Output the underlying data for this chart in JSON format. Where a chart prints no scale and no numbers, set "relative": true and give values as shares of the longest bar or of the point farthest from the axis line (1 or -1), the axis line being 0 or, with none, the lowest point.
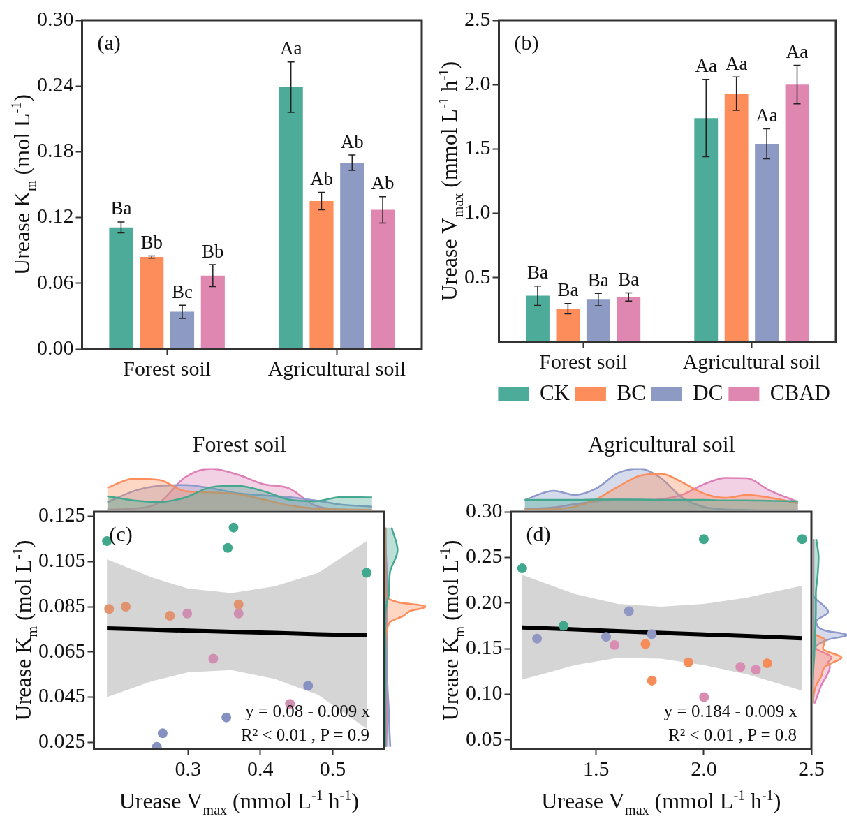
{
  "chart_data": [
    {
      "type": "bar",
      "ylabel": "Urease K$_{m}$ (mol L$^{-1}$)",
      "annotations": [
        "(a)"
      ],
      "categories": [
        "Forest soil",
        "Agricultural soil"
      ],
      "ylim": [
        0,
        0.3
      ],
      "yticks": [
        {
          "value": 0,
          "label": "0.00"
        },
        0.06,
        0.12,
        0.18,
        0.24,
        {
          "value": 0.3,
          "label": "0.30"
        }
      ],
      "grid": false,
      "series": [
        {
          "color": "#4dab99",
          "values": [
            0.111,
            0.239
          ],
          "errors": [
            0.005,
            0.023
          ],
          "value_labels": [
            "Ba",
            "Aa"
          ]
        },
        {
          "color": "#fd8d5b",
          "values": [
            0.084,
            0.135
          ],
          "errors": [
            0.001,
            0.008
          ],
          "value_labels": [
            "Bb",
            "Ab"
          ]
        },
        {
          "color": "#8c9ac4",
          "values": [
            0.034,
            0.17
          ],
          "errors": [
            0.006,
            0.007
          ],
          "value_labels": [
            "Bc",
            "Ab"
          ]
        },
        {
          "color": "#df86b1",
          "values": [
            0.067,
            0.127
          ],
          "errors": [
            0.01,
            0.012
          ],
          "value_labels": [
            "Bb",
            "Ab"
          ]
        }
      ]
    },
    {
      "type": "bar",
      "ylabel": "Urease V$_{max}$ (mmol L$^{-1}$ h$^{-1}$)",
      "annotations": [
        "(b)"
      ],
      "categories": [
        "Forest soil",
        "Agricultural soil"
      ],
      "ylim": [
        0,
        2.5
      ],
      "yticks": [
        0.5,
        {
          "value": 1,
          "label": "1.0"
        },
        1.5,
        {
          "value": 2,
          "label": "2.0"
        },
        2.5
      ],
      "grid": false,
      "legend": "bottom right",
      "series": [
        {
          "name": "CK",
          "color": "#4dab99",
          "values": [
            0.36,
            1.74
          ],
          "errors": [
            0.075,
            0.3
          ],
          "value_labels": [
            "Ba",
            "Aa"
          ]
        },
        {
          "name": "BC",
          "color": "#fd8d5b",
          "values": [
            0.26,
            1.93
          ],
          "errors": [
            0.04,
            0.13
          ],
          "value_labels": [
            "Ba",
            "Aa"
          ]
        },
        {
          "name": "DC",
          "color": "#8c9ac4",
          "values": [
            0.33,
            1.54
          ],
          "errors": [
            0.048,
            0.117
          ],
          "value_labels": [
            "Ba",
            "Aa"
          ]
        },
        {
          "name": "CBAD",
          "color": "#df86b1",
          "values": [
            0.35,
            2.0
          ],
          "errors": [
            0.032,
            0.15
          ],
          "value_labels": [
            "Ba",
            "Aa"
          ]
        }
      ]
    },
    {
      "type": "scatter",
      "xlabel": "Urease V$_{max}$ (mmol L$^{-1}$ h$^{-1}$)",
      "ylabel": "Urease K$_{m}$ (mol L$^{-1}$)",
      "annotations": [
        "(c)",
        "y = 0.08 - 0.009 x",
        "R² < 0.01 , P = 0.9"
      ],
      "xlim": [
        0.17,
        0.571
      ],
      "xticks": [
        0.3,
        0.4,
        0.5
      ],
      "ylim": [
        0.022,
        0.127
      ],
      "yticks": [
        0.025,
        0.045,
        0.065,
        0.085,
        0.105,
        0.125
      ],
      "grid": false,
      "marker": "circle",
      "series": [
        {
          "color": "#3fa88d",
          "x": [
            0.188,
            0.363,
            0.355,
            0.547
          ],
          "values": [
            0.114,
            0.12,
            0.111,
            0.1
          ]
        },
        {
          "color": "#e19370",
          "x": [
            0.191,
            0.214,
            0.275,
            0.37
          ],
          "values": [
            0.084,
            0.085,
            0.081,
            0.086
          ]
        },
        {
          "color": "#8592c1",
          "x": [
            0.466,
            0.353,
            0.265,
            0.257
          ],
          "values": [
            0.05,
            0.036,
            0.029,
            0.023
          ]
        },
        {
          "color": "#cf8fb0",
          "x": [
            0.299,
            0.37,
            0.335,
            0.441
          ],
          "values": [
            0.082,
            0.082,
            0.062,
            0.042
          ]
        },
        {
          "type": "line",
          "marker": "none",
          "color": "#000000",
          "x": [
            0.188,
            0.25,
            0.3,
            0.36,
            0.42,
            0.48,
            0.547
          ],
          "values": [
            0.0754,
            0.0749,
            0.0744,
            0.0739,
            0.0734,
            0.0728,
            0.0723
          ],
          "lower": [
            0.045,
            0.052,
            0.056,
            0.057,
            0.053,
            0.046,
            0.031
          ],
          "upper": [
            0.106,
            0.098,
            0.093,
            0.091,
            0.094,
            0.1,
            0.114
          ]
        }
      ]
    },
    {
      "type": "area",
      "relative": true,
      "title": "Forest soil",
      "tick_labels": false,
      "xlim": [
        0.17,
        0.571
      ],
      "x": [
        0.188,
        0.224,
        0.26,
        0.296,
        0.332,
        0.368,
        0.404,
        0.439,
        0.475,
        0.511,
        0.554
      ],
      "series": [
        {
          "color": "#44a88f",
          "values": [
            0.34,
            0.24,
            0.2,
            0.31,
            0.56,
            0.59,
            0.46,
            0.26,
            0.22,
            0.32,
            0.31
          ]
        },
        {
          "color": "#fc8d5c",
          "values": [
            0.54,
            0.76,
            0.73,
            0.46,
            0.43,
            0.39,
            0.26,
            0.12,
            0.04,
            0.02,
            0.01
          ]
        },
        {
          "color": "#8d9acb",
          "values": [
            0.19,
            0.46,
            0.59,
            0.61,
            0.53,
            0.41,
            0.36,
            0.32,
            0.24,
            0.14,
            0.09
          ]
        },
        {
          "color": "#de7fb5",
          "values": [
            0.02,
            0.04,
            0.19,
            0.8,
            1.0,
            0.86,
            0.63,
            0.53,
            0.12,
            0.02,
            0
          ]
        }
      ]
    },
    {
      "type": "area",
      "relative": true,
      "orientation": "horizontal",
      "tick_labels": false,
      "ylim": [
        0.022,
        0.127
      ],
      "x": [
        0.12,
        0.11,
        0.1,
        0.09,
        0.087,
        0.085,
        0.083,
        0.081,
        0.078,
        0.07,
        0.06,
        0.05,
        0.04,
        0.03,
        0.023
      ],
      "series": [
        {
          "color": "#44a88f",
          "values": [
            0.15,
            0.3,
            0.11,
            0.08,
            0.04,
            0.02,
            0.01,
            0,
            0,
            0,
            0,
            0,
            0,
            0,
            0
          ]
        },
        {
          "color": "#fc8d5c",
          "values": [
            0,
            0,
            0,
            0.02,
            0.3,
            1,
            0.6,
            0.45,
            0.1,
            0.01,
            0,
            0,
            0,
            0,
            0
          ]
        },
        {
          "color": "#8d9acb",
          "values": [
            0,
            0,
            0,
            0.02,
            0.02,
            0.02,
            0.02,
            0.02,
            0.02,
            0.03,
            0.04,
            0.05,
            0.08,
            0.1,
            0.12
          ]
        },
        {
          "color": "#de7fb5",
          "values": [
            0,
            0.01,
            0.03,
            0.03,
            0.03,
            0.03,
            0.03,
            0.03,
            0.03,
            0.03,
            0.03,
            0.03,
            0.03,
            0.03,
            0.02
          ]
        }
      ]
    },
    {
      "type": "scatter",
      "xlabel": "Urease V$_{max}$ (mmol L$^{-1}$ h$^{-1}$)",
      "ylabel": "Urease K$_{m}$ (mol L$^{-1}$)",
      "annotations": [
        "(d)",
        "y = 0.184 - 0.009 x",
        "R² < 0.01 , P = 0.8"
      ],
      "xlim": [
        1.103,
        2.5
      ],
      "xticks": [
        1.5,
        {
          "value": 2,
          "label": "2.0"
        },
        2.5
      ],
      "ylim": [
        0.04,
        0.3
      ],
      "yticks": [
        0.05,
        {
          "value": 0.1,
          "label": "0.10"
        },
        0.15,
        {
          "value": 0.2,
          "label": "0.20"
        },
        0.25,
        {
          "value": 0.3,
          "label": "0.30"
        }
      ],
      "grid": false,
      "marker": "circle",
      "series": [
        {
          "color": "#3fa88d",
          "x": [
            1.156,
            2.0,
            2.457,
            1.348
          ],
          "values": [
            0.238,
            0.27,
            0.27,
            0.175
          ]
        },
        {
          "color": "#f68c58",
          "x": [
            1.729,
            1.928,
            2.295,
            1.759
          ],
          "values": [
            0.155,
            0.135,
            0.134,
            0.115
          ]
        },
        {
          "color": "#8f97c2",
          "x": [
            1.225,
            1.546,
            1.652,
            1.758
          ],
          "values": [
            0.161,
            0.163,
            0.191,
            0.166
          ]
        },
        {
          "color": "#d98db3",
          "x": [
            1.585,
            2.17,
            2.242,
            2.001
          ],
          "values": [
            0.154,
            0.13,
            0.127,
            0.097
          ]
        },
        {
          "type": "line",
          "marker": "none",
          "color": "#000000",
          "x": [
            1.156,
            1.4,
            1.6,
            1.8,
            2.0,
            2.2,
            2.457
          ],
          "values": [
            0.1733,
            0.1711,
            0.1693,
            0.1674,
            0.1656,
            0.1638,
            0.1614
          ],
          "lower": [
            0.116,
            0.132,
            0.14,
            0.139,
            0.132,
            0.122,
            0.104
          ],
          "upper": [
            0.231,
            0.21,
            0.199,
            0.196,
            0.199,
            0.206,
            0.219
          ]
        }
      ]
    },
    {
      "type": "area",
      "relative": true,
      "title": "Agricultural soil",
      "tick_labels": false,
      "xlim": [
        1.103,
        2.5
      ],
      "x": [
        1.166,
        1.3,
        1.4,
        1.5,
        1.6,
        1.7,
        1.8,
        1.9,
        2.0,
        2.1,
        2.2,
        2.3,
        2.436
      ],
      "series": [
        {
          "color": "#44a88f",
          "values": [
            0.25,
            0.25,
            0.25,
            0.26,
            0.26,
            0.26,
            0.25,
            0.25,
            0.25,
            0.24,
            0.24,
            0.23,
            0.22
          ]
        },
        {
          "color": "#fc8d5c",
          "values": [
            0.02,
            0.03,
            0.09,
            0.27,
            0.57,
            0.83,
            0.88,
            0.67,
            0.4,
            0.3,
            0.37,
            0.31,
            0.17
          ]
        },
        {
          "color": "#8d9acb",
          "values": [
            0.25,
            0.47,
            0.37,
            0.53,
            0.9,
            1.0,
            0.77,
            0.3,
            0.08,
            0.02,
            0.01,
            0,
            0
          ]
        },
        {
          "color": "#de7fb5",
          "values": [
            0.03,
            0.07,
            0.15,
            0.22,
            0.27,
            0.25,
            0.27,
            0.38,
            0.63,
            0.78,
            0.77,
            0.49,
            0.2
          ]
        }
      ]
    },
    {
      "type": "area",
      "relative": true,
      "orientation": "horizontal",
      "tick_labels": false,
      "ylim": [
        0.04,
        0.3
      ],
      "x": [
        0.27,
        0.25,
        0.23,
        0.21,
        0.19,
        0.18,
        0.17,
        0.165,
        0.16,
        0.15,
        0.14,
        0.135,
        0.13,
        0.12,
        0.11,
        0.1,
        0.09
      ],
      "series": [
        {
          "color": "#44a88f",
          "values": [
            0.1,
            0.17,
            0.14,
            0.09,
            0.09,
            0.08,
            0.07,
            0.06,
            0.06,
            0.05,
            0.04,
            0.03,
            0.02,
            0.01,
            0,
            0,
            0
          ]
        },
        {
          "color": "#fc8d5c",
          "values": [
            0,
            0,
            0,
            0,
            0,
            0,
            0,
            0.1,
            0.35,
            0.3,
            0.84,
            0.6,
            0.35,
            0.25,
            0.1,
            0.03,
            0
          ]
        },
        {
          "color": "#8d9acb",
          "values": [
            0,
            0,
            0,
            0,
            0.45,
            0.1,
            0.35,
            1,
            0.45,
            0.05,
            0.02,
            0,
            0,
            0,
            0,
            0,
            0
          ]
        },
        {
          "color": "#de7fb5",
          "values": [
            0.02,
            0.02,
            0.02,
            0.02,
            0.02,
            0.02,
            0.02,
            0.02,
            0.02,
            0.1,
            0.55,
            0.45,
            0.5,
            0.4,
            0.25,
            0.15,
            0.05
          ]
        }
      ]
    }
  ]
}
